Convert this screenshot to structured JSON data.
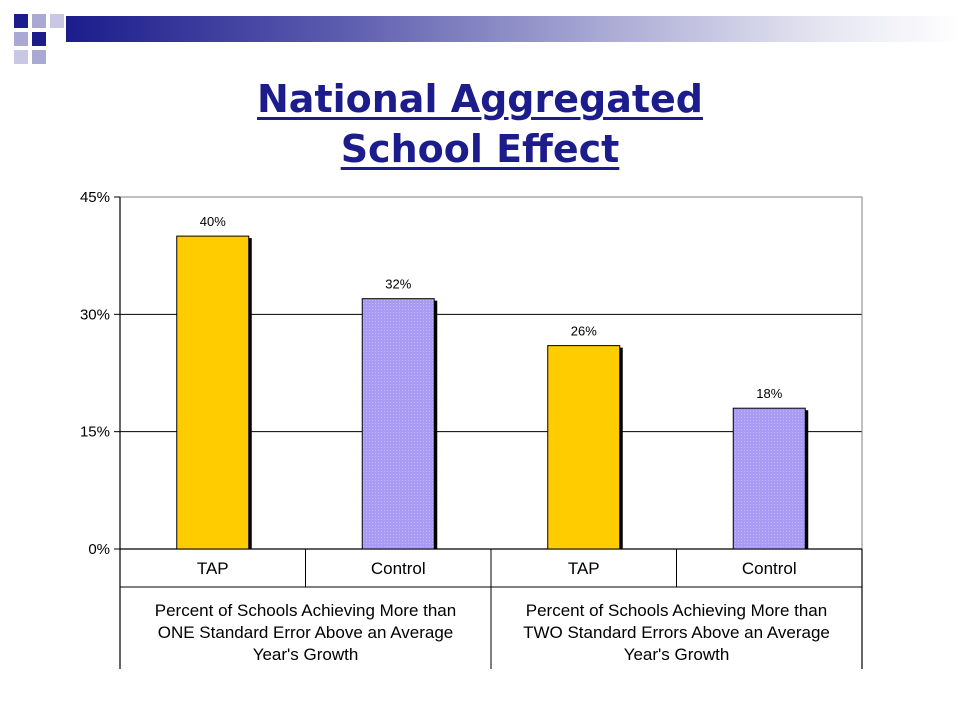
{
  "slide": {
    "title_line1": "National Aggregated",
    "title_line2": "School Effect",
    "title_color": "#1c1c8c",
    "accent_color": "#1c1c8c",
    "accent_light": "#a9a9d4"
  },
  "chart_data": {
    "type": "bar",
    "title": "",
    "xlabel": "",
    "ylabel": "",
    "ylim": [
      0,
      45
    ],
    "yticks": [
      0,
      15,
      30,
      45
    ],
    "ytick_labels": [
      "0%",
      "15%",
      "30%",
      "45%"
    ],
    "grid": true,
    "legend": "none",
    "categories": [
      "TAP",
      "Control",
      "TAP",
      "Control"
    ],
    "values": [
      40,
      32,
      26,
      18
    ],
    "value_labels": [
      "40%",
      "32%",
      "26%",
      "18%"
    ],
    "bar_colors": [
      "#ffcc00",
      "#a99bf4",
      "#ffcc00",
      "#a99bf4"
    ],
    "groups": [
      {
        "label_lines": [
          "Percent of Schools Achieving More than",
          "ONE Standard Error Above an Average",
          "Year's Growth"
        ]
      },
      {
        "label_lines": [
          "Percent of Schools Achieving More than",
          "TWO Standard Errors Above an Average",
          "Year's Growth"
        ]
      }
    ]
  }
}
